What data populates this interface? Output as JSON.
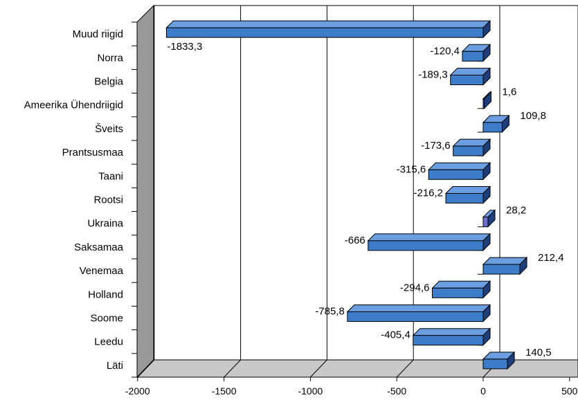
{
  "chart_data": {
    "type": "bar",
    "orientation": "horizontal",
    "three_d": true,
    "categories": [
      "Muud riigid",
      "Norra",
      "Belgia",
      "Ameerika Ühendriigid",
      "Šveits",
      "Prantsusmaa",
      "Taani",
      "Rootsi",
      "Ukraina",
      "Saksamaa",
      "Venemaa",
      "Holland",
      "Soome",
      "Leedu",
      "Läti"
    ],
    "values": [
      -1833.3,
      -120.4,
      -189.3,
      1.6,
      109.8,
      -173.6,
      -315.6,
      -216.2,
      28.2,
      -666,
      212.4,
      -294.6,
      -785.8,
      -405.4,
      140.5
    ],
    "data_labels": [
      "-1833,3",
      "-120,4",
      "-189,3",
      "1,6",
      "109,8",
      "-173,6",
      "-315,6",
      "-216,2",
      "28,2",
      "-666",
      "212,4",
      "-294,6",
      "-785,8",
      "-405,4",
      "140,5"
    ],
    "x_ticks": [
      -2000,
      -1500,
      -1000,
      -500,
      0,
      500
    ],
    "x_tick_labels": [
      "-2000",
      "-1500",
      "-1000",
      "-500",
      "0",
      "500"
    ],
    "xlim": [
      -2000,
      500
    ],
    "grid": "vertical",
    "legend": "none",
    "title": "",
    "xlabel": "",
    "ylabel": "",
    "colors": {
      "bar_face": "#3d7cc9",
      "bar_top": "#6a9ee0",
      "bar_side": "#1f3f7a",
      "small_bar_face": "#6b6fd1",
      "wall": "#999999",
      "floor": "#c0c0c0",
      "gridline": "#000000"
    }
  }
}
